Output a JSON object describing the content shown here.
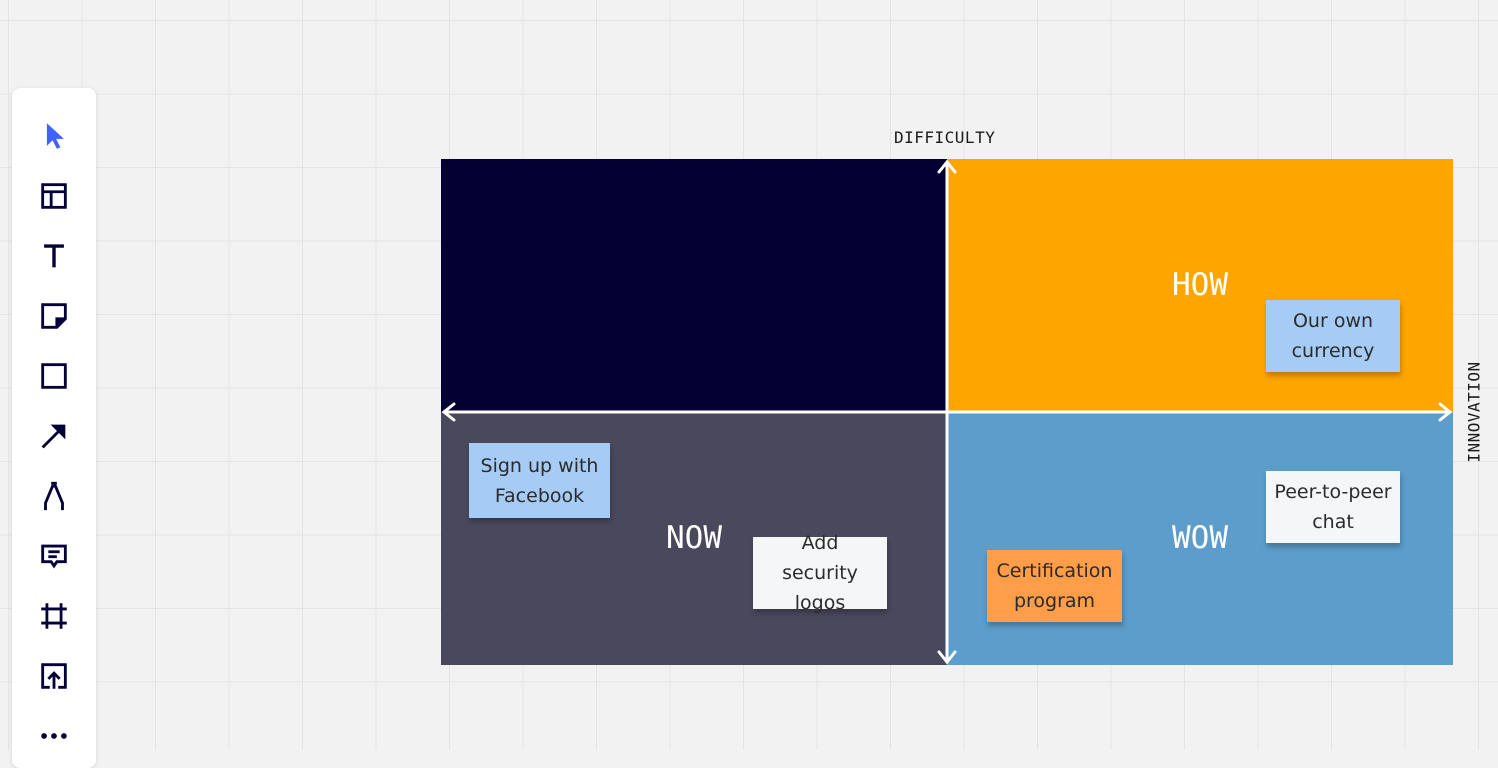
{
  "colors": {
    "canvas": "#f2f2f2",
    "quadrant_top_left": "#050034",
    "quadrant_top_right": "#ffa500",
    "quadrant_bottom_left": "#4a485c",
    "quadrant_bottom_right": "#5c9dcb",
    "axis": "#ffffff",
    "sticky_blue": "#a6ccf5",
    "sticky_white": "#f5f6f8",
    "sticky_orange": "#ff9d48",
    "select_tool": "#4262ff"
  },
  "toolbar": {
    "tools": [
      {
        "name": "select",
        "icon": "cursor-arrow-icon"
      },
      {
        "name": "templates",
        "icon": "layout-icon"
      },
      {
        "name": "text",
        "icon": "text-icon"
      },
      {
        "name": "sticky-note",
        "icon": "sticky-note-icon"
      },
      {
        "name": "shape",
        "icon": "square-icon"
      },
      {
        "name": "line",
        "icon": "arrow-icon"
      },
      {
        "name": "pen",
        "icon": "pen-icon"
      },
      {
        "name": "comment",
        "icon": "comment-icon"
      },
      {
        "name": "frame",
        "icon": "frame-icon"
      },
      {
        "name": "upload",
        "icon": "upload-icon"
      },
      {
        "name": "more",
        "icon": "more-icon"
      }
    ]
  },
  "matrix": {
    "axis_y_label": "DIFFICULTY",
    "axis_x_label": "INNOVATION",
    "quadrants": {
      "top_left": "",
      "top_right": "HOW",
      "bottom_left": "NOW",
      "bottom_right": "WOW"
    }
  },
  "stickies": [
    {
      "id": "our-own-currency",
      "text": "Our own currency",
      "color": "#a6ccf5"
    },
    {
      "id": "sign-up-with-facebook",
      "text": "Sign up with Facebook",
      "color": "#a6ccf5"
    },
    {
      "id": "add-security-logos",
      "text": "Add security logos",
      "color": "#f5f6f8"
    },
    {
      "id": "peer-to-peer-chat",
      "text": "Peer-to-peer chat",
      "color": "#f5f6f8"
    },
    {
      "id": "certification-program",
      "text": "Certification program",
      "color": "#ff9d48"
    }
  ]
}
